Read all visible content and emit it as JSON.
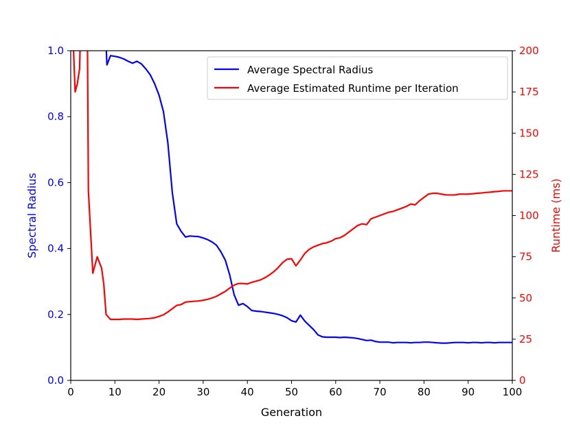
{
  "chart_data": {
    "type": "line",
    "title": "",
    "xlabel": "Generation",
    "ylabel_left": "Spectral Radius",
    "ylabel_right": "Runtime (ms)",
    "xlim": [
      0,
      100
    ],
    "ylim_left": [
      0.0,
      1.0
    ],
    "ylim_right": [
      0,
      200
    ],
    "x_ticks": [
      "0",
      "10",
      "20",
      "30",
      "40",
      "50",
      "60",
      "70",
      "80",
      "90",
      "100"
    ],
    "y_left_ticks": [
      "0.0",
      "0.2",
      "0.4",
      "0.6",
      "0.8",
      "1.0"
    ],
    "y_right_ticks": [
      "0",
      "25",
      "50",
      "75",
      "100",
      "125",
      "150",
      "175",
      "200"
    ],
    "grid": false,
    "legend_position": "top-right",
    "series": [
      {
        "name": "Average Spectral Radius",
        "axis": "left",
        "color": "#0000ff",
        "points": [
          [
            0,
            1.05
          ],
          [
            7,
            1.05
          ],
          [
            8,
            1.02
          ],
          [
            8.2,
            0.957
          ],
          [
            9,
            0.985
          ],
          [
            10,
            0.983
          ],
          [
            11,
            0.98
          ],
          [
            12,
            0.975
          ],
          [
            13,
            0.968
          ],
          [
            14,
            0.962
          ],
          [
            15,
            0.968
          ],
          [
            16,
            0.96
          ],
          [
            17,
            0.945
          ],
          [
            18,
            0.927
          ],
          [
            19,
            0.9
          ],
          [
            20,
            0.865
          ],
          [
            21,
            0.815
          ],
          [
            22,
            0.72
          ],
          [
            23,
            0.57
          ],
          [
            24,
            0.475
          ],
          [
            25,
            0.452
          ],
          [
            26,
            0.435
          ],
          [
            27,
            0.438
          ],
          [
            28,
            0.437
          ],
          [
            29,
            0.436
          ],
          [
            30,
            0.432
          ],
          [
            31,
            0.427
          ],
          [
            32,
            0.42
          ],
          [
            33,
            0.41
          ],
          [
            34,
            0.39
          ],
          [
            35,
            0.365
          ],
          [
            36,
            0.32
          ],
          [
            37,
            0.26
          ],
          [
            38,
            0.228
          ],
          [
            39,
            0.233
          ],
          [
            40,
            0.224
          ],
          [
            41,
            0.212
          ],
          [
            42,
            0.21
          ],
          [
            43,
            0.209
          ],
          [
            44,
            0.207
          ],
          [
            45,
            0.205
          ],
          [
            46,
            0.203
          ],
          [
            47,
            0.2
          ],
          [
            48,
            0.196
          ],
          [
            49,
            0.19
          ],
          [
            50,
            0.181
          ],
          [
            51,
            0.177
          ],
          [
            52,
            0.198
          ],
          [
            53,
            0.18
          ],
          [
            54,
            0.167
          ],
          [
            55,
            0.154
          ],
          [
            56,
            0.138
          ],
          [
            57,
            0.132
          ],
          [
            58,
            0.131
          ],
          [
            59,
            0.131
          ],
          [
            60,
            0.131
          ],
          [
            61,
            0.13
          ],
          [
            62,
            0.131
          ],
          [
            63,
            0.13
          ],
          [
            64,
            0.129
          ],
          [
            65,
            0.127
          ],
          [
            66,
            0.124
          ],
          [
            67,
            0.121
          ],
          [
            68,
            0.122
          ],
          [
            69,
            0.118
          ],
          [
            70,
            0.116
          ],
          [
            71,
            0.116
          ],
          [
            72,
            0.116
          ],
          [
            73,
            0.114
          ],
          [
            74,
            0.115
          ],
          [
            75,
            0.115
          ],
          [
            76,
            0.115
          ],
          [
            77,
            0.114
          ],
          [
            78,
            0.115
          ],
          [
            79,
            0.115
          ],
          [
            80,
            0.116
          ],
          [
            81,
            0.116
          ],
          [
            82,
            0.115
          ],
          [
            83,
            0.114
          ],
          [
            84,
            0.113
          ],
          [
            85,
            0.113
          ],
          [
            86,
            0.114
          ],
          [
            87,
            0.115
          ],
          [
            88,
            0.115
          ],
          [
            89,
            0.115
          ],
          [
            90,
            0.114
          ],
          [
            91,
            0.115
          ],
          [
            92,
            0.115
          ],
          [
            93,
            0.114
          ],
          [
            94,
            0.115
          ],
          [
            95,
            0.115
          ],
          [
            96,
            0.114
          ],
          [
            97,
            0.115
          ],
          [
            98,
            0.115
          ],
          [
            99,
            0.115
          ],
          [
            100,
            0.115
          ]
        ]
      },
      {
        "name": "Average Estimated Runtime per Iteration",
        "axis": "right",
        "color": "#ff0000",
        "points": [
          [
            0.5,
            210
          ],
          [
            1,
            175
          ],
          [
            1.5,
            180
          ],
          [
            2,
            189
          ],
          [
            2.2,
            210
          ],
          [
            3.5,
            210
          ],
          [
            3.8,
            200
          ],
          [
            4,
            115
          ],
          [
            5,
            65
          ],
          [
            6,
            75
          ],
          [
            7,
            68
          ],
          [
            7.5,
            58
          ],
          [
            8,
            40
          ],
          [
            9,
            37
          ],
          [
            10,
            37
          ],
          [
            11,
            37
          ],
          [
            12,
            37.2
          ],
          [
            13,
            37.2
          ],
          [
            14,
            37.2
          ],
          [
            15,
            37
          ],
          [
            16,
            37.2
          ],
          [
            17,
            37.4
          ],
          [
            18,
            37.6
          ],
          [
            19,
            38
          ],
          [
            20,
            38.8
          ],
          [
            21,
            39.8
          ],
          [
            22,
            41.5
          ],
          [
            23,
            43.5
          ],
          [
            24,
            45.5
          ],
          [
            25,
            46
          ],
          [
            26,
            47.5
          ],
          [
            27,
            47.8
          ],
          [
            28,
            48
          ],
          [
            29,
            48.2
          ],
          [
            30,
            48.6
          ],
          [
            31,
            49.2
          ],
          [
            32,
            50
          ],
          [
            33,
            51
          ],
          [
            34,
            52.5
          ],
          [
            35,
            54
          ],
          [
            36,
            56
          ],
          [
            37,
            57.8
          ],
          [
            38,
            58.8
          ],
          [
            39,
            58.8
          ],
          [
            40,
            58.5
          ],
          [
            41,
            59.5
          ],
          [
            42,
            60.2
          ],
          [
            43,
            61
          ],
          [
            44,
            62.3
          ],
          [
            45,
            64
          ],
          [
            46,
            66
          ],
          [
            47,
            68.5
          ],
          [
            48,
            71.5
          ],
          [
            49,
            73.5
          ],
          [
            50,
            73.8
          ],
          [
            51,
            69.5
          ],
          [
            52,
            73
          ],
          [
            53,
            77
          ],
          [
            54,
            79.5
          ],
          [
            55,
            81
          ],
          [
            56,
            82
          ],
          [
            57,
            83
          ],
          [
            58,
            83.5
          ],
          [
            59,
            84.5
          ],
          [
            60,
            86
          ],
          [
            61,
            86.5
          ],
          [
            62,
            88
          ],
          [
            63,
            90
          ],
          [
            64,
            92
          ],
          [
            65,
            94
          ],
          [
            66,
            95
          ],
          [
            67,
            94.5
          ],
          [
            68,
            98
          ],
          [
            69,
            99
          ],
          [
            70,
            100
          ],
          [
            71,
            101
          ],
          [
            72,
            102
          ],
          [
            73,
            102.5
          ],
          [
            74,
            103.5
          ],
          [
            75,
            104.5
          ],
          [
            76,
            105.5
          ],
          [
            77,
            107
          ],
          [
            78,
            106.5
          ],
          [
            79,
            109
          ],
          [
            80,
            111
          ],
          [
            81,
            113
          ],
          [
            82,
            113.5
          ],
          [
            83,
            113.5
          ],
          [
            84,
            113
          ],
          [
            85,
            112.5
          ],
          [
            86,
            112.5
          ],
          [
            87,
            112.5
          ],
          [
            88,
            113
          ],
          [
            89,
            113
          ],
          [
            90,
            113
          ],
          [
            91,
            113.2
          ],
          [
            92,
            113.5
          ],
          [
            93,
            113.7
          ],
          [
            94,
            114
          ],
          [
            95,
            114.2
          ],
          [
            96,
            114.5
          ],
          [
            97,
            114.7
          ],
          [
            98,
            115
          ],
          [
            99,
            115
          ],
          [
            100,
            115
          ]
        ]
      }
    ]
  }
}
